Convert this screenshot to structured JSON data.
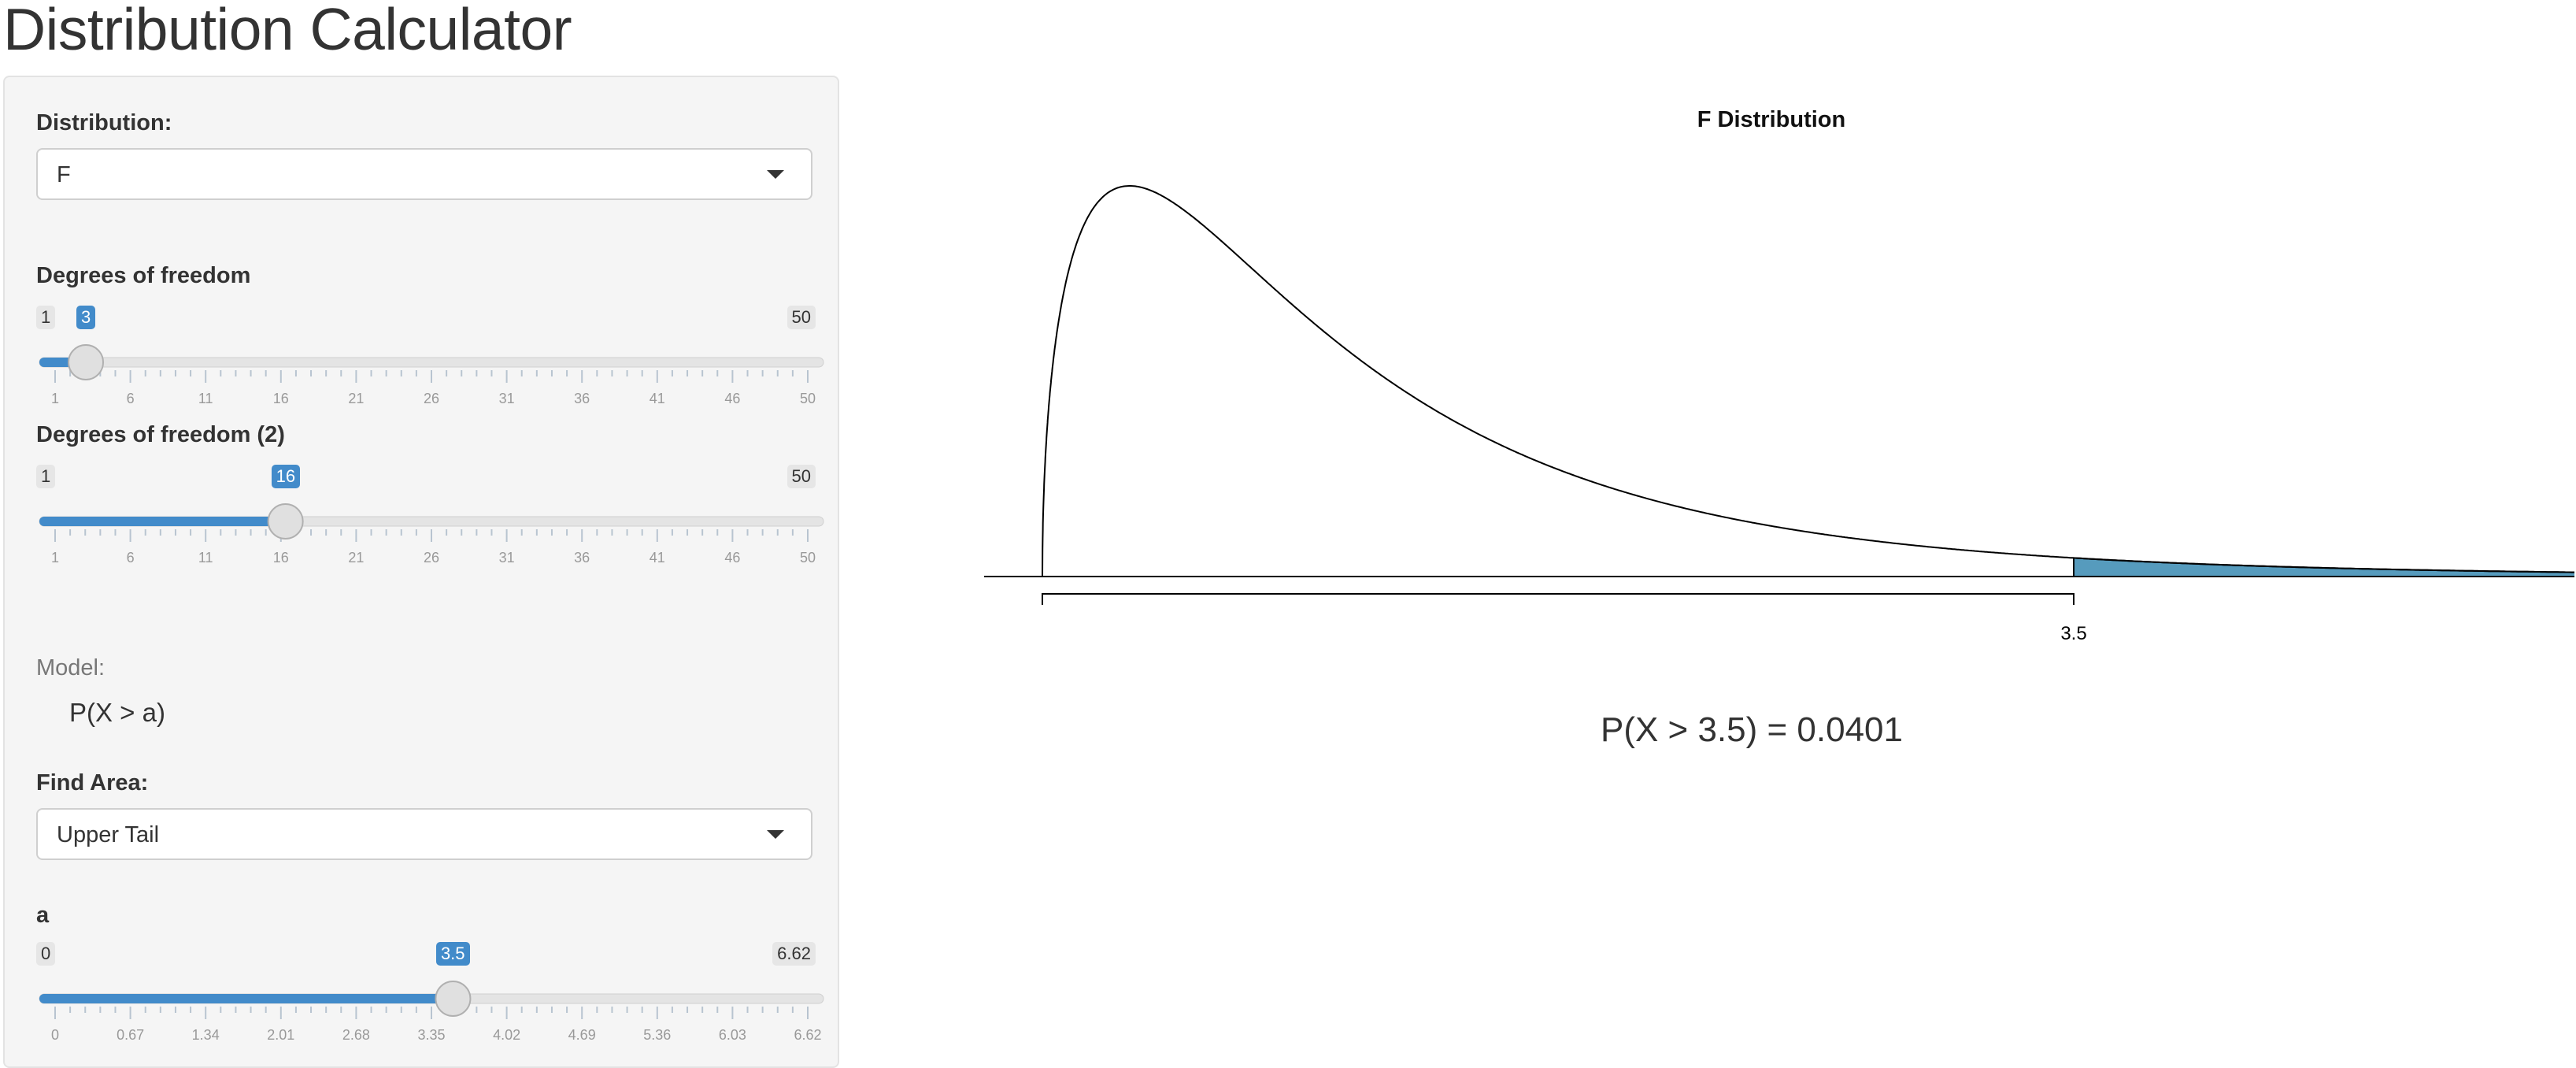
{
  "page_title": "Distribution Calculator",
  "sidebar": {
    "distribution": {
      "label": "Distribution:",
      "value": "F"
    },
    "df1": {
      "label": "Degrees of freedom",
      "min": 1,
      "max": 50,
      "value": 3,
      "ticks": [
        "1",
        "6",
        "11",
        "16",
        "21",
        "26",
        "31",
        "36",
        "41",
        "46",
        "50"
      ]
    },
    "df2": {
      "label": "Degrees of freedom (2)",
      "min": 1,
      "max": 50,
      "value": 16,
      "ticks": [
        "1",
        "6",
        "11",
        "16",
        "21",
        "26",
        "31",
        "36",
        "41",
        "46",
        "50"
      ]
    },
    "model": {
      "label": "Model:",
      "value": "P(X > a)"
    },
    "find_area": {
      "label": "Find Area:",
      "value": "Upper Tail"
    },
    "a": {
      "label": "a",
      "min": 0,
      "max": 6.62,
      "value": 3.5,
      "ticks": [
        "0",
        "0.67",
        "1.34",
        "2.01",
        "2.68",
        "3.35",
        "4.02",
        "4.69",
        "5.36",
        "6.03",
        "6.62"
      ]
    }
  },
  "chart_data": {
    "type": "area",
    "title": "F Distribution",
    "df1": 3,
    "df2": 16,
    "tail": "upper",
    "cutoff": 3.5,
    "x_tick_labels": [
      "3.5"
    ],
    "xlim": [
      0,
      5.25
    ],
    "shaded_color": "#569BBD",
    "result_text": "P(X > 3.5) = 0.0401"
  },
  "colors": {
    "accent": "#428bca",
    "shade": "#569BBD"
  }
}
